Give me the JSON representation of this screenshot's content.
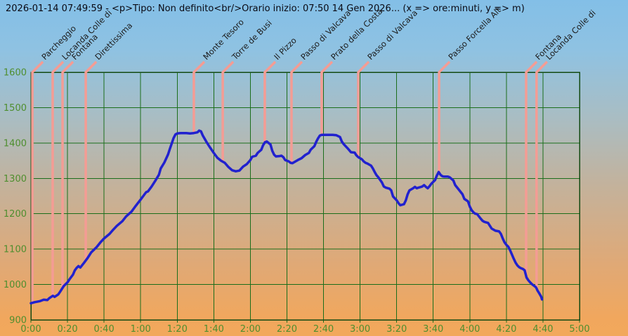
{
  "title": "2026-01-14 07:49:59 - <p>Tipo: Non definito<br/>Orario inizio: 07:50 14 Gen 2026... (x => ore:minuti, y => m)",
  "colors": {
    "background_top": "#83BFE7",
    "background_bottom": "#F2A85C",
    "grid": "#1B6E1B",
    "plot_border": "#124A12",
    "axis_text": "#4E8E2E",
    "profile_line": "#2121CE",
    "waypoint_line": "#F49C94",
    "waypoint_text": "#1C1C1C",
    "title_text": "#0A0A14"
  },
  "chart_data": {
    "type": "line",
    "title": "2026-01-14 07:49:59 - <p>Tipo: Non definito<br/>Orario inizio: 07:50 14 Gen 2026... (x => ore:minuti, y => m)",
    "xlabel": "ore:minuti",
    "ylabel": "m",
    "grid": true,
    "x_axis": {
      "unit": "ore:minuti",
      "min": 0,
      "max": 300,
      "tick_values": [
        0,
        20,
        40,
        60,
        80,
        100,
        120,
        140,
        160,
        180,
        200,
        220,
        240,
        260,
        280,
        300
      ],
      "tick_labels": [
        "0:00",
        "0:20",
        "0:40",
        "1:00",
        "1:20",
        "1:40",
        "2:00",
        "2:20",
        "2:40",
        "3:00",
        "3:20",
        "3:40",
        "4:00",
        "4:20",
        "4:40",
        "5:00"
      ]
    },
    "y_axis": {
      "unit": "m",
      "min": 900,
      "max": 1600,
      "tick_values": [
        900,
        1000,
        1100,
        1200,
        1300,
        1400,
        1500,
        1600
      ],
      "tick_labels": [
        "900",
        "1000",
        "1100",
        "1200",
        "1300",
        "1400",
        "1500",
        "1600"
      ]
    },
    "series": [
      {
        "name": "elevation-profile",
        "color": "#2121CE",
        "points": [
          [
            0,
            947
          ],
          [
            2,
            950
          ],
          [
            5,
            953
          ],
          [
            7,
            957
          ],
          [
            9,
            956
          ],
          [
            10,
            961
          ],
          [
            12,
            968
          ],
          [
            13,
            965
          ],
          [
            15,
            972
          ],
          [
            16,
            980
          ],
          [
            18,
            996
          ],
          [
            20,
            1006
          ],
          [
            21,
            1014
          ],
          [
            23,
            1028
          ],
          [
            24,
            1040
          ],
          [
            25,
            1047
          ],
          [
            26,
            1052
          ],
          [
            27,
            1048
          ],
          [
            29,
            1061
          ],
          [
            31,
            1075
          ],
          [
            33,
            1091
          ],
          [
            36,
            1106
          ],
          [
            38,
            1119
          ],
          [
            40,
            1130
          ],
          [
            43,
            1143
          ],
          [
            45,
            1155
          ],
          [
            47,
            1166
          ],
          [
            50,
            1179
          ],
          [
            52,
            1192
          ],
          [
            55,
            1206
          ],
          [
            57,
            1220
          ],
          [
            60,
            1240
          ],
          [
            62,
            1254
          ],
          [
            63,
            1261
          ],
          [
            64,
            1263
          ],
          [
            66,
            1277
          ],
          [
            68,
            1293
          ],
          [
            70,
            1310
          ],
          [
            71,
            1328
          ],
          [
            73,
            1345
          ],
          [
            75,
            1368
          ],
          [
            76,
            1384
          ],
          [
            77,
            1399
          ],
          [
            78,
            1414
          ],
          [
            79,
            1424
          ],
          [
            80,
            1427
          ],
          [
            82,
            1428
          ],
          [
            85,
            1428
          ],
          [
            87,
            1427
          ],
          [
            89,
            1428
          ],
          [
            91,
            1430
          ],
          [
            92,
            1435
          ],
          [
            93,
            1433
          ],
          [
            94,
            1421
          ],
          [
            96,
            1403
          ],
          [
            98,
            1387
          ],
          [
            100,
            1372
          ],
          [
            102,
            1358
          ],
          [
            104,
            1350
          ],
          [
            106,
            1344
          ],
          [
            108,
            1332
          ],
          [
            110,
            1323
          ],
          [
            112,
            1320
          ],
          [
            114,
            1322
          ],
          [
            116,
            1333
          ],
          [
            118,
            1340
          ],
          [
            120,
            1352
          ],
          [
            121,
            1361
          ],
          [
            123,
            1364
          ],
          [
            124,
            1372
          ],
          [
            126,
            1381
          ],
          [
            127,
            1394
          ],
          [
            128,
            1402
          ],
          [
            129,
            1404
          ],
          [
            131,
            1396
          ],
          [
            132,
            1378
          ],
          [
            133,
            1367
          ],
          [
            134,
            1362
          ],
          [
            136,
            1363
          ],
          [
            137,
            1364
          ],
          [
            138,
            1360
          ],
          [
            139,
            1352
          ],
          [
            141,
            1348
          ],
          [
            142,
            1344
          ],
          [
            143,
            1343
          ],
          [
            144,
            1346
          ],
          [
            146,
            1352
          ],
          [
            148,
            1357
          ],
          [
            150,
            1366
          ],
          [
            152,
            1372
          ],
          [
            153,
            1381
          ],
          [
            155,
            1391
          ],
          [
            156,
            1403
          ],
          [
            157,
            1413
          ],
          [
            158,
            1421
          ],
          [
            159,
            1423
          ],
          [
            162,
            1423
          ],
          [
            165,
            1423
          ],
          [
            167,
            1422
          ],
          [
            169,
            1417
          ],
          [
            170,
            1404
          ],
          [
            171,
            1397
          ],
          [
            173,
            1386
          ],
          [
            174,
            1380
          ],
          [
            175,
            1374
          ],
          [
            177,
            1373
          ],
          [
            178,
            1365
          ],
          [
            179,
            1360
          ],
          [
            181,
            1354
          ],
          [
            182,
            1348
          ],
          [
            183,
            1344
          ],
          [
            184,
            1342
          ],
          [
            186,
            1336
          ],
          [
            187,
            1328
          ],
          [
            188,
            1318
          ],
          [
            189,
            1309
          ],
          [
            190,
            1303
          ],
          [
            192,
            1288
          ],
          [
            193,
            1277
          ],
          [
            194,
            1274
          ],
          [
            196,
            1271
          ],
          [
            197,
            1266
          ],
          [
            198,
            1249
          ],
          [
            200,
            1238
          ],
          [
            201,
            1230
          ],
          [
            202,
            1224
          ],
          [
            204,
            1227
          ],
          [
            205,
            1238
          ],
          [
            206,
            1255
          ],
          [
            207,
            1266
          ],
          [
            209,
            1272
          ],
          [
            210,
            1276
          ],
          [
            211,
            1272
          ],
          [
            212,
            1274
          ],
          [
            214,
            1277
          ],
          [
            215,
            1281
          ],
          [
            216,
            1276
          ],
          [
            217,
            1272
          ],
          [
            218,
            1278
          ],
          [
            219,
            1285
          ],
          [
            221,
            1295
          ],
          [
            222,
            1308
          ],
          [
            223,
            1318
          ],
          [
            224,
            1310
          ],
          [
            225,
            1306
          ],
          [
            226,
            1305
          ],
          [
            228,
            1305
          ],
          [
            229,
            1303
          ],
          [
            231,
            1294
          ],
          [
            232,
            1281
          ],
          [
            234,
            1268
          ],
          [
            236,
            1255
          ],
          [
            237,
            1242
          ],
          [
            239,
            1235
          ],
          [
            240,
            1220
          ],
          [
            241,
            1210
          ],
          [
            242,
            1204
          ],
          [
            243,
            1200
          ],
          [
            244,
            1199
          ],
          [
            246,
            1186
          ],
          [
            247,
            1180
          ],
          [
            248,
            1177
          ],
          [
            250,
            1174
          ],
          [
            251,
            1166
          ],
          [
            252,
            1158
          ],
          [
            254,
            1152
          ],
          [
            256,
            1150
          ],
          [
            257,
            1143
          ],
          [
            258,
            1130
          ],
          [
            259,
            1119
          ],
          [
            260,
            1112
          ],
          [
            261,
            1107
          ],
          [
            262,
            1097
          ],
          [
            263,
            1085
          ],
          [
            264,
            1073
          ],
          [
            265,
            1062
          ],
          [
            266,
            1054
          ],
          [
            267,
            1049
          ],
          [
            268,
            1046
          ],
          [
            269,
            1044
          ],
          [
            270,
            1040
          ],
          [
            270.5,
            1030
          ],
          [
            271,
            1020
          ],
          [
            272,
            1012
          ],
          [
            273,
            1006
          ],
          [
            274,
            1001
          ],
          [
            275,
            997
          ],
          [
            276,
            993
          ],
          [
            276.5,
            989
          ],
          [
            277,
            983
          ],
          [
            278,
            975
          ],
          [
            279,
            966
          ],
          [
            279.5,
            958
          ]
        ]
      }
    ],
    "waypoints": [
      {
        "t_min": 0.8,
        "label": "Parcheggio"
      },
      {
        "t_min": 11.9,
        "label": "Locanda Colle di"
      },
      {
        "t_min": 17.3,
        "label": "Fontana"
      },
      {
        "t_min": 30,
        "label": "Direttissima"
      },
      {
        "t_min": 89.1,
        "label": "Monte Tesoro"
      },
      {
        "t_min": 104.9,
        "label": "Torre de Busi"
      },
      {
        "t_min": 127.9,
        "label": "Il Pizzo"
      },
      {
        "t_min": 142.5,
        "label": "Passo di Valcava"
      },
      {
        "t_min": 159,
        "label": "Prato della Costa"
      },
      {
        "t_min": 179,
        "label": "Passo di Valcava"
      },
      {
        "t_min": 223.2,
        "label": "Passo  Forcella Alt"
      },
      {
        "t_min": 270.8,
        "label": "Fontana"
      },
      {
        "t_min": 276.5,
        "label": "Locanda Colle di"
      }
    ]
  }
}
